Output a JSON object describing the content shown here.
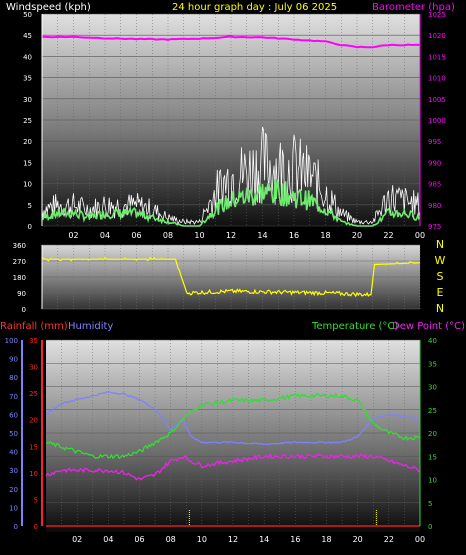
{
  "header": {
    "wind_label": "Windspeed (kph)",
    "title": "24 hour graph day : July 06 2025",
    "baro_label": "Barometer (hpa)"
  },
  "legend": {
    "rain": "Rainfall (mm)",
    "humidity": "Humidity",
    "temperature": "Temperature (°C)",
    "dewpoint": "Dew Point (°C)"
  },
  "colors": {
    "wind_avg": "#6eea6e",
    "wind_gust": "#ffffff",
    "barometer": "#ff00ff",
    "direction": "#ffff00",
    "humidity": "#8080ff",
    "temperature": "#33dd33",
    "dewpoint": "#ee22ee",
    "rain": "#ff2222"
  },
  "chart_data": [
    {
      "type": "line",
      "title": "24 hour graph day : July 06 2025",
      "xlabel": "",
      "x_ticks": [
        "02",
        "04",
        "06",
        "08",
        "10",
        "12",
        "14",
        "16",
        "18",
        "20",
        "22",
        "00"
      ],
      "x_range": [
        0,
        24
      ],
      "series": [
        {
          "name": "Windspeed (kph)",
          "axis": "left",
          "color": "#ffffff",
          "x": [
            0,
            1,
            2,
            3,
            4,
            5,
            6,
            7,
            8,
            9,
            10,
            11,
            12,
            13,
            14,
            15,
            16,
            17,
            18,
            19,
            20,
            21,
            22,
            23,
            24
          ],
          "values": [
            4,
            5,
            5,
            4,
            5,
            5,
            5,
            4,
            2,
            1,
            1,
            8,
            12,
            13,
            15,
            14,
            14,
            12,
            8,
            3,
            1,
            1,
            7,
            6,
            5
          ]
        },
        {
          "name": "Wind average (kph)",
          "axis": "left",
          "color": "#6eea6e",
          "x": [
            0,
            1,
            2,
            3,
            4,
            5,
            6,
            7,
            8,
            9,
            10,
            11,
            12,
            13,
            14,
            15,
            16,
            17,
            18,
            19,
            20,
            21,
            22,
            23,
            24
          ],
          "values": [
            2,
            3,
            3,
            2,
            3,
            3,
            3,
            2,
            1,
            0,
            0,
            4,
            6,
            7,
            8,
            8,
            7,
            6,
            4,
            1,
            0,
            0,
            3,
            3,
            2
          ]
        },
        {
          "name": "Barometer (hpa)",
          "axis": "right",
          "color": "#ff00ff",
          "x": [
            0,
            2,
            4,
            6,
            8,
            10,
            12,
            14,
            16,
            18,
            19,
            20,
            21,
            22,
            24
          ],
          "values": [
            1019.6,
            1019.6,
            1019.3,
            1019.1,
            1019.0,
            1019.2,
            1019.6,
            1019.5,
            1019.0,
            1018.5,
            1017.7,
            1017.2,
            1017.2,
            1017.7,
            1017.7
          ]
        }
      ],
      "y_left": {
        "ticks": [
          "0",
          "5",
          "10",
          "15",
          "20",
          "25",
          "30",
          "35",
          "40",
          "45",
          "50"
        ],
        "range": [
          0,
          50
        ]
      },
      "y_right": {
        "ticks": [
          "975",
          "980",
          "985",
          "990",
          "995",
          "1000",
          "1005",
          "1010",
          "1015",
          "1020",
          "1025"
        ],
        "range": [
          975,
          1025
        ]
      }
    },
    {
      "type": "line",
      "title": "",
      "x_range": [
        0,
        24
      ],
      "y_ticks": [
        "0",
        "90",
        "180",
        "270",
        "360"
      ],
      "y_range": [
        0,
        360
      ],
      "compass": [
        "N",
        "W",
        "S",
        "E",
        "N"
      ],
      "series": [
        {
          "name": "Wind direction",
          "color": "#ffff00",
          "x": [
            0,
            8.5,
            8.5,
            9.2,
            12,
            15,
            18,
            20.9,
            21.1,
            24
          ],
          "values": [
            280,
            280,
            270,
            90,
            100,
            95,
            90,
            80,
            250,
            260
          ]
        }
      ]
    },
    {
      "type": "line",
      "title": "",
      "x_range": [
        0,
        24
      ],
      "y_humidity": {
        "ticks": [
          "0",
          "10",
          "20",
          "30",
          "40",
          "50",
          "60",
          "70",
          "80",
          "90",
          "100"
        ],
        "range": [
          0,
          100
        ]
      },
      "y_rain": {
        "ticks": [
          "0",
          "5",
          "10",
          "15",
          "20",
          "25",
          "30",
          "35"
        ],
        "range": [
          0,
          35
        ]
      },
      "y_temp": {
        "ticks": [
          "0",
          "5",
          "10",
          "15",
          "20",
          "25",
          "30",
          "35",
          "40"
        ],
        "range": [
          0,
          40
        ]
      },
      "series": [
        {
          "name": "Humidity",
          "axis": "humidity",
          "color": "#8080ff",
          "x": [
            0,
            1,
            2,
            3,
            4,
            5,
            6,
            7,
            8,
            8.8,
            9.3,
            10,
            12,
            14,
            16,
            18,
            19,
            20,
            21,
            22,
            23,
            24
          ],
          "values": [
            60,
            66,
            68,
            70,
            72,
            71,
            68,
            63,
            52,
            57,
            48,
            45,
            45,
            44,
            45,
            45,
            45,
            48,
            58,
            60,
            59,
            57
          ]
        },
        {
          "name": "Temperature (°C)",
          "axis": "temp",
          "color": "#33dd33",
          "x": [
            0,
            1,
            2,
            3,
            4,
            5,
            6,
            7,
            8,
            8.8,
            9.5,
            10,
            12,
            14,
            16,
            18,
            19,
            20,
            21,
            22,
            23,
            24
          ],
          "values": [
            18,
            17,
            16,
            15,
            15,
            15,
            16,
            18,
            20,
            23,
            25,
            26,
            27,
            27,
            28,
            28,
            28,
            27,
            22,
            20,
            19,
            19
          ]
        },
        {
          "name": "Dew Point (°C)",
          "axis": "temp",
          "color": "#ee22ee",
          "x": [
            0,
            1,
            2,
            3,
            4,
            5,
            6,
            7,
            8,
            8.8,
            9.3,
            10,
            12,
            14,
            16,
            18,
            20,
            21,
            22,
            23,
            24
          ],
          "values": [
            11,
            12,
            12,
            12,
            12,
            11.5,
            10,
            11,
            14,
            15,
            14,
            13,
            14,
            15,
            15,
            15,
            15,
            15,
            14,
            13,
            12
          ]
        },
        {
          "name": "Rainfall (mm)",
          "axis": "rain",
          "color": "#ff2222",
          "x": [
            0,
            24
          ],
          "values": [
            0,
            0
          ]
        }
      ],
      "markers_x": [
        9.2,
        21.2
      ]
    }
  ]
}
